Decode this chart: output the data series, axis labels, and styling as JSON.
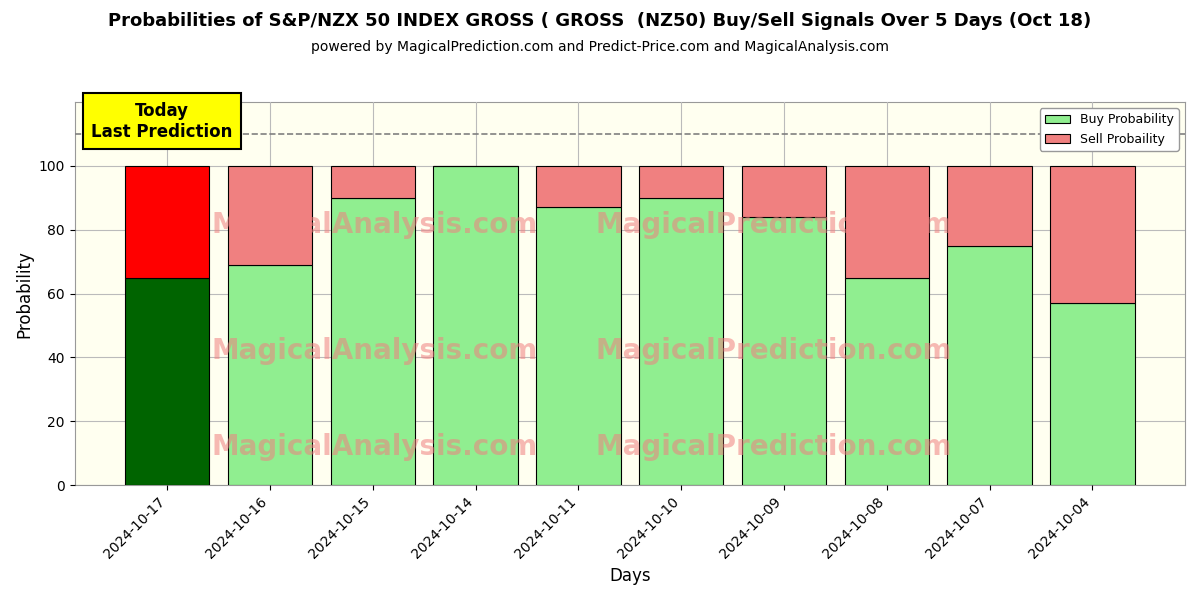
{
  "title": "Probabilities of S&P/NZX 50 INDEX GROSS ( GROSS  (NZ50) Buy/Sell Signals Over 5 Days (Oct 18)",
  "subtitle": "powered by MagicalPrediction.com and Predict-Price.com and MagicalAnalysis.com",
  "xlabel": "Days",
  "ylabel": "Probability",
  "dates": [
    "2024-10-17",
    "2024-10-16",
    "2024-10-15",
    "2024-10-14",
    "2024-10-11",
    "2024-10-10",
    "2024-10-09",
    "2024-10-08",
    "2024-10-07",
    "2024-10-04"
  ],
  "buy_values": [
    65,
    69,
    90,
    100,
    87,
    90,
    84,
    65,
    75,
    57
  ],
  "sell_values": [
    35,
    31,
    10,
    0,
    13,
    10,
    16,
    35,
    25,
    43
  ],
  "bar0_buy_color": "#006400",
  "bar0_sell_color": "#FF0000",
  "buy_color": "#90EE90",
  "sell_color": "#F08080",
  "bar_edge_color": "#000000",
  "ylim": [
    0,
    120
  ],
  "yticks": [
    0,
    20,
    40,
    60,
    80,
    100
  ],
  "dashed_line_y": 110,
  "plot_bg_color": "#FFFFF0",
  "figure_bg_color": "#FFFFFF",
  "grid_color": "#BBBBBB",
  "watermark1": "MagicalAnalysis.com",
  "watermark2": "MagicalPrediction.com",
  "annotation_text": "Today\nLast Prediction",
  "annotation_bg": "#FFFF00",
  "legend_buy_label": "Buy Probability",
  "legend_sell_label": "Sell Probaility",
  "title_fontsize": 13,
  "subtitle_fontsize": 10,
  "axis_label_fontsize": 12,
  "bar_width": 0.82
}
